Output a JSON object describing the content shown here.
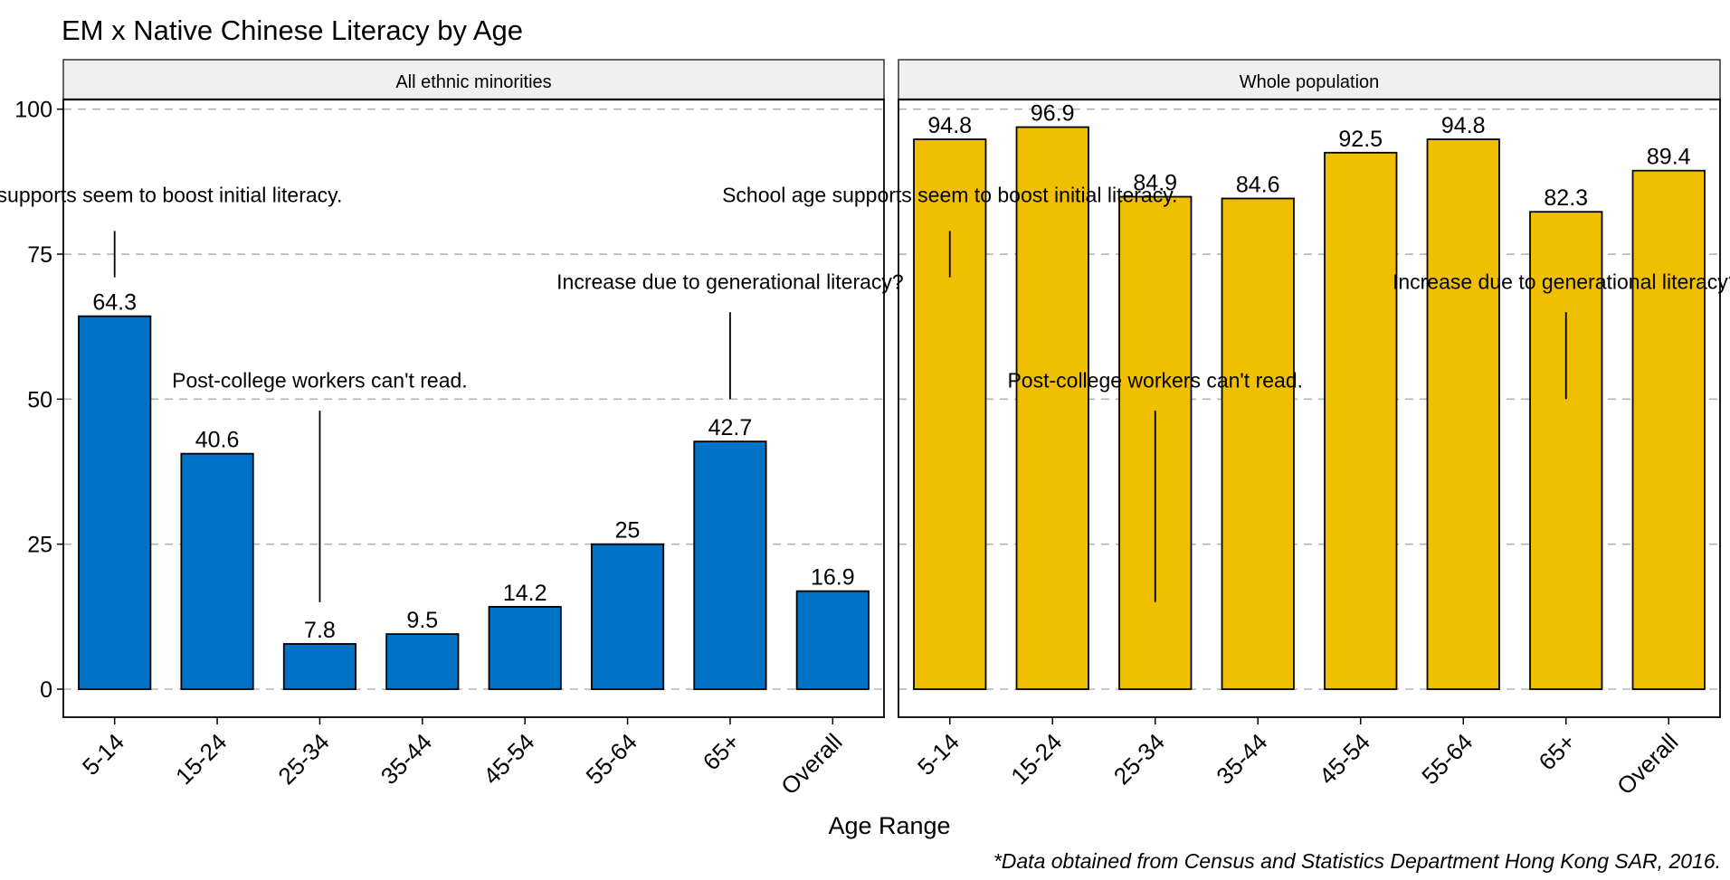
{
  "chart_data": {
    "type": "bar",
    "title": "EM x Native Chinese Literacy by Age",
    "xlabel": "Age Range",
    "ylabel": "",
    "ylim": [
      -5,
      108
    ],
    "yticks": [
      0,
      25,
      50,
      75,
      100
    ],
    "grid": "horizontal dashed",
    "caption": "*Data obtained from Census and Statistics Department Hong Kong SAR, 2016.",
    "categories": [
      "5-14",
      "15-24",
      "25-34",
      "35-44",
      "45-54",
      "55-64",
      "65+",
      "Overall"
    ],
    "panels": [
      {
        "name": "All ethnic minorities",
        "color": "#0072C6",
        "values": [
          64.3,
          40.6,
          7.8,
          9.5,
          14.2,
          25,
          42.7,
          16.9
        ],
        "value_labels": [
          "64.3",
          "40.6",
          "7.8",
          "9.5",
          "14.2",
          "25",
          "42.7",
          "16.9"
        ]
      },
      {
        "name": "Whole population",
        "color": "#F0C000",
        "values": [
          94.8,
          96.9,
          84.9,
          84.6,
          92.5,
          94.8,
          82.3,
          89.4
        ],
        "value_labels": [
          "94.8",
          "96.9",
          "84.9",
          "84.6",
          "92.5",
          "94.8",
          "82.3",
          "89.4"
        ]
      }
    ],
    "annotations": [
      {
        "text": "School age supports seem to boost initial literacy.",
        "category": "5-14",
        "text_y": 84,
        "line_from": 79,
        "line_to": 71
      },
      {
        "text": "Increase due to generational literacy?",
        "category": "65+",
        "text_y": 69,
        "line_from": 65,
        "line_to": 50
      },
      {
        "text": "Post-college workers can't read.",
        "category": "25-34",
        "text_y": 52,
        "line_from": 48,
        "line_to": 15
      }
    ]
  }
}
